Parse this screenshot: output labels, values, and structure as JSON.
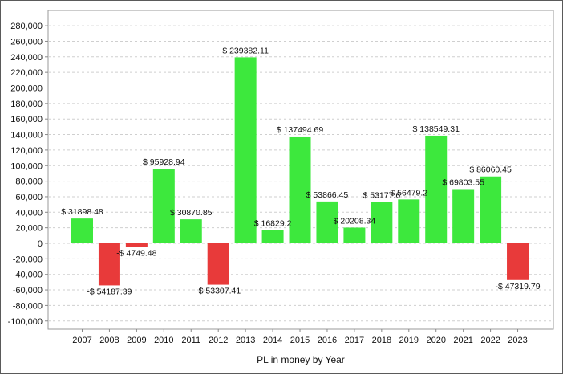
{
  "chart_data": {
    "type": "bar",
    "xlabel": "PL in money by Year",
    "ylabel": "",
    "ylim": [
      -110000,
      290000
    ],
    "yticks": [
      280000,
      260000,
      240000,
      220000,
      200000,
      180000,
      160000,
      140000,
      120000,
      100000,
      80000,
      60000,
      40000,
      20000,
      0,
      -20000,
      -40000,
      -60000,
      -80000,
      -100000
    ],
    "ytick_labels": [
      "280,000",
      "260,000",
      "240,000",
      "220,000",
      "200,000",
      "180,000",
      "160,000",
      "140,000",
      "120,000",
      "100,000",
      "80,000",
      "60,000",
      "40,000",
      "20,000",
      "0",
      "-20,000",
      "-40,000",
      "-60,000",
      "-80,000",
      "-100,000"
    ],
    "grid": true,
    "categories": [
      "2007",
      "2008",
      "2009",
      "2010",
      "2011",
      "2012",
      "2013",
      "2014",
      "2015",
      "2016",
      "2017",
      "2018",
      "2019",
      "2020",
      "2021",
      "2022",
      "2023"
    ],
    "values": [
      31898.48,
      -54187.39,
      -4749.48,
      95928.94,
      30870.85,
      -53307.41,
      239382.11,
      16829.2,
      137494.69,
      53866.45,
      20208.34,
      53177.6,
      56479.2,
      138549.31,
      69803.55,
      86060.45,
      -47319.79
    ],
    "data_labels": [
      "$ 31898.48",
      "-$ 54187.39",
      "-$ 4749.48",
      "$ 95928.94",
      "$ 30870.85",
      "-$ 53307.41",
      "$ 239382.11",
      "$ 16829.2",
      "$ 137494.69",
      "$ 53866.45",
      "$ 20208.34",
      "$ 53177.6",
      "$ 56479.2",
      "$ 138549.31",
      "$ 69803.55",
      "$ 86060.45",
      "-$ 47319.79"
    ],
    "colors": {
      "positive": "#3de83d",
      "negative": "#e83a3a",
      "grid": "#cfcfcf",
      "axis": "#888888"
    }
  }
}
